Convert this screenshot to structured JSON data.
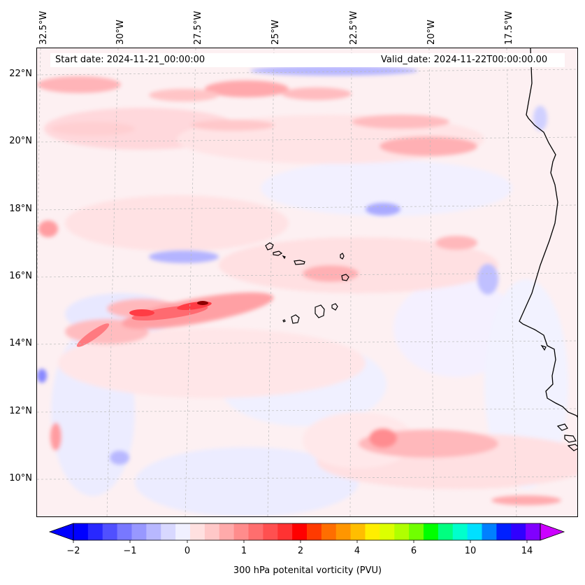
{
  "header": {
    "start_date": "Start date: 2024-11-21_00:00:00",
    "valid_date": "Valid_date: 2024-11-22T00:00:00.00"
  },
  "longitude_labels": [
    "32.5°W",
    "30°W",
    "27.5°W",
    "25°W",
    "22.5°W",
    "20°W",
    "17.5°W"
  ],
  "latitude_labels": [
    "22°N",
    "20°N",
    "18°N",
    "16°N",
    "14°N",
    "12°N",
    "10°N"
  ],
  "colorbar": {
    "label": "300 hPa potenital vorticity (PVU)",
    "ticks": [
      "−2",
      "−1",
      "0",
      "1",
      "2",
      "4",
      "6",
      "10",
      "14"
    ],
    "colors": [
      "#0000ff",
      "#2828ff",
      "#5050ff",
      "#7878ff",
      "#9898ff",
      "#b8b8ff",
      "#d8d8ff",
      "#f0f0ff",
      "#ffe0e0",
      "#ffc8c8",
      "#ffaaaa",
      "#ff8c8c",
      "#ff6e6e",
      "#ff5050",
      "#ff3232",
      "#ff0000",
      "#ff3a00",
      "#ff6e00",
      "#ff9600",
      "#ffbe00",
      "#ffee00",
      "#dcff00",
      "#b0ff00",
      "#70ff00",
      "#00ff00",
      "#00ff80",
      "#00ffcc",
      "#00e0ff",
      "#0080ff",
      "#0020ff",
      "#3000ff",
      "#8000ff"
    ],
    "min_color": "#0000ff",
    "max_color": "#cc00ff"
  }
}
